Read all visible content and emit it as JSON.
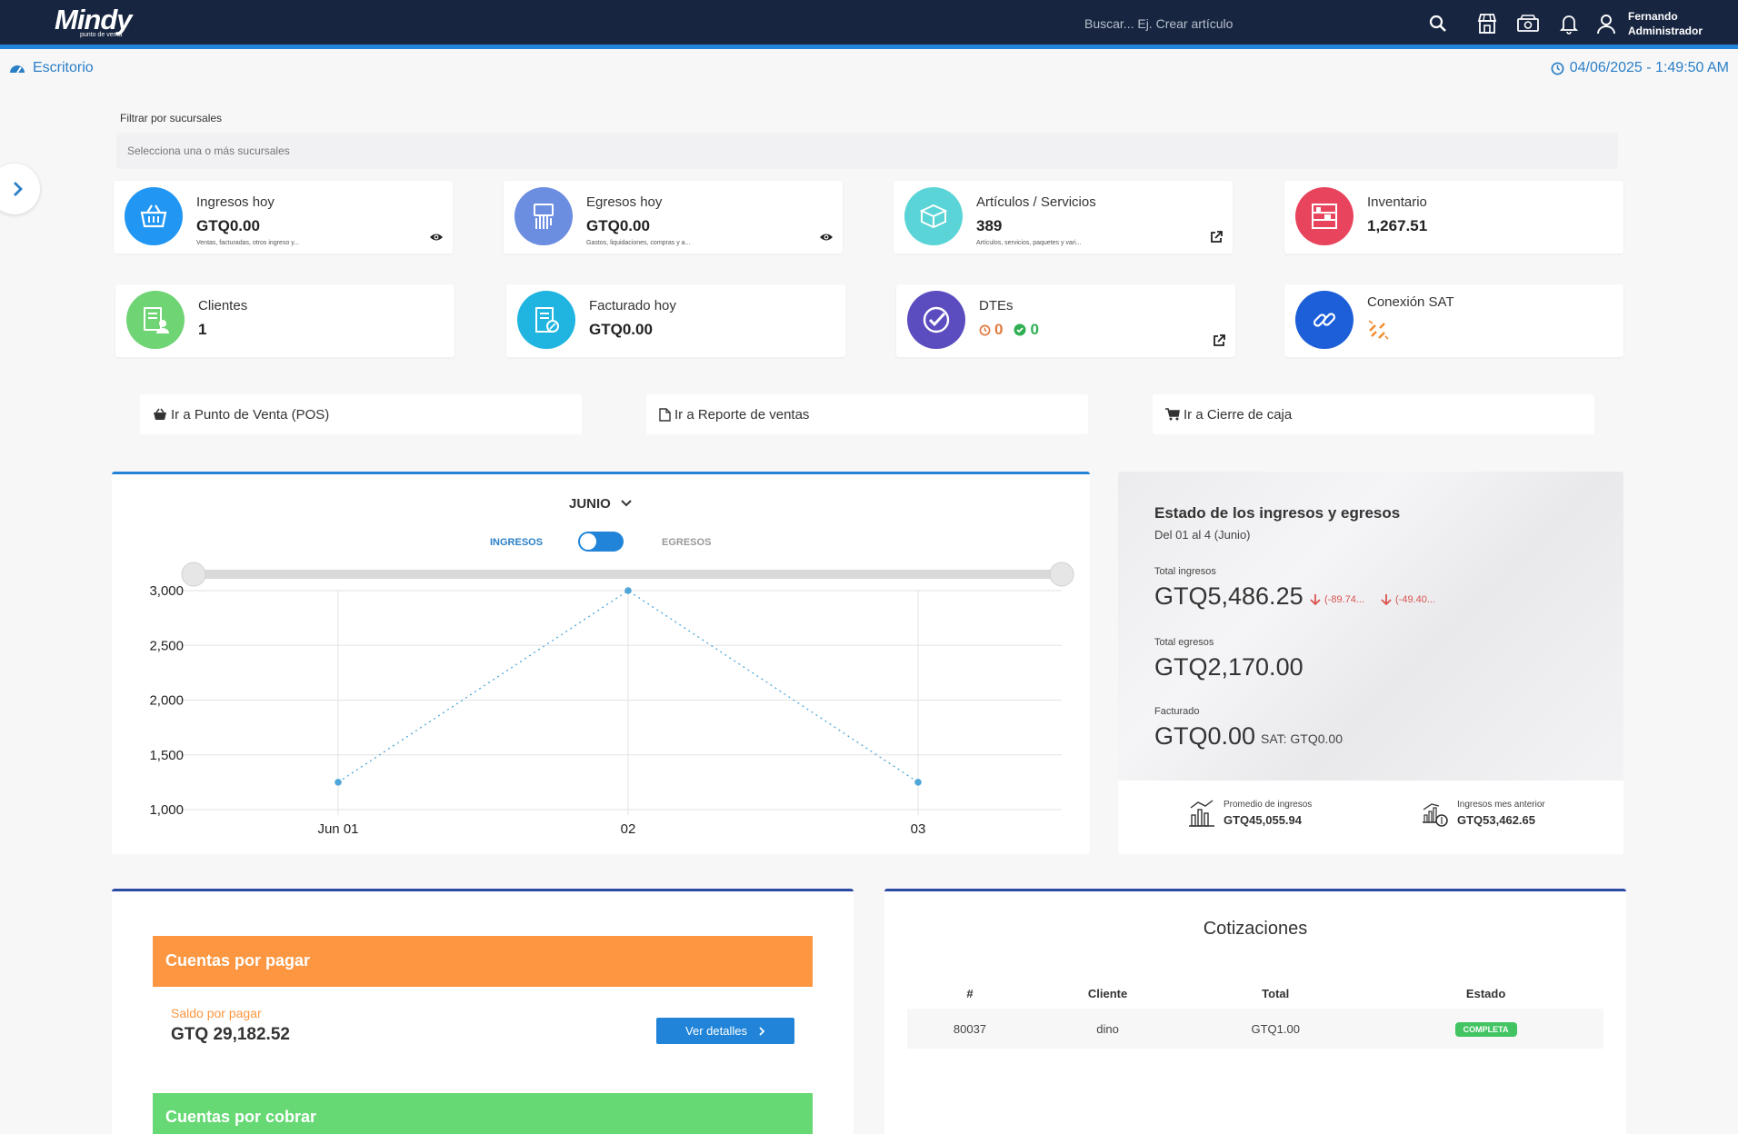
{
  "app": {
    "logo": "Mindy",
    "logo_tagline": "punto de venta",
    "search_placeholder": "Buscar... Ej. Crear artículo",
    "user_name": "Fernando",
    "user_role": "Administrador"
  },
  "header": {
    "breadcrumb": "Escritorio",
    "datetime": "04/06/2025 -  1:49:50 AM"
  },
  "filter": {
    "label": "Filtrar por sucursales",
    "placeholder": "Selecciona una o más sucursales"
  },
  "cards": [
    {
      "title": "Ingresos hoy",
      "value": "GTQ0.00",
      "sub": "Ventas, facturadas, otros ingreso y...",
      "color": "#2196f3",
      "icon": "basket-icon",
      "action": "eye-icon"
    },
    {
      "title": "Egresos hoy",
      "value": "GTQ0.00",
      "sub": "Gastos, liquidaciones, compras y a...",
      "color": "#6c8ee0",
      "icon": "hand-money-icon",
      "action": "eye-icon"
    },
    {
      "title": "Artículos / Servicios",
      "value": "389",
      "sub": "Artículos, servicios, paquetes y vari...",
      "color": "#5ad4d6",
      "icon": "box-icon",
      "action": "external-link-icon"
    },
    {
      "title": "Inventario",
      "value": "1,267.51",
      "sub": "",
      "color": "#e8445e",
      "icon": "shelves-icon",
      "action": ""
    },
    {
      "title": "Clientes",
      "value": "1",
      "sub": "",
      "color": "#6fd474",
      "icon": "client-doc-icon",
      "action": ""
    },
    {
      "title": "Facturado hoy",
      "value": "GTQ0.00",
      "sub": "",
      "color": "#1fb5e0",
      "icon": "invoice-icon",
      "action": ""
    },
    {
      "title": "DTEs",
      "value_pending": "0",
      "value_ok": "0",
      "color": "#5b4dbf",
      "icon": "check-badge-icon",
      "action": "external-link-icon"
    },
    {
      "title": "Conexión SAT",
      "color": "#1c5fd8",
      "icon": "link-icon",
      "status_icon": "broken-link-icon"
    }
  ],
  "quick_links": [
    {
      "label": "Ir a Punto de Venta (POS)",
      "icon": "basket-icon"
    },
    {
      "label": "Ir a Reporte de ventas",
      "icon": "pdf-file-icon"
    },
    {
      "label": "Ir a Cierre de caja",
      "icon": "cart-icon"
    }
  ],
  "chart_controls": {
    "month": "JUNIO",
    "toggle_left": "INGRESOS",
    "toggle_right": "EGRESOS"
  },
  "chart_data": {
    "type": "line",
    "categories": [
      "Jun 01",
      "02",
      "03"
    ],
    "series": [
      {
        "values": [
          1250,
          3000,
          1250
        ],
        "color": "#4fa6d8"
      }
    ],
    "yticks": [
      "3,000",
      "2,500",
      "2,000",
      "1,500",
      "1,000"
    ],
    "ylim": [
      1000,
      3000
    ],
    "grid": true,
    "line_style": "dotted"
  },
  "summary": {
    "title": "Estado de los ingresos y egresos",
    "range": "Del 01 al 4 (Junio)",
    "total_ingresos_label": "Total ingresos",
    "total_ingresos": "GTQ5,486.25",
    "delta_1": "(-89.74...",
    "delta_2": "(-49.40...",
    "total_egresos_label": "Total egresos",
    "total_egresos": "GTQ2,170.00",
    "facturado_label": "Facturado",
    "facturado": "GTQ0.00",
    "sat": "SAT: GTQ0.00",
    "promedio_label": "Promedio de ingresos",
    "promedio": "GTQ45,055.94",
    "mes_anterior_label": "Ingresos mes anterior",
    "mes_anterior": "GTQ53,462.65"
  },
  "cuentas": {
    "pagar_title": "Cuentas por pagar",
    "saldo_label": "Saldo por pagar",
    "saldo_value": "GTQ 29,182.52",
    "ver_detalles": "Ver detalles",
    "cobrar_title": "Cuentas por cobrar"
  },
  "cotizaciones": {
    "title": "Cotizaciones",
    "columns": [
      "#",
      "Cliente",
      "Total",
      "Estado"
    ],
    "rows": [
      {
        "num": "80037",
        "cliente": "dino",
        "total": "GTQ1.00",
        "estado": "COMPLETA"
      }
    ]
  }
}
